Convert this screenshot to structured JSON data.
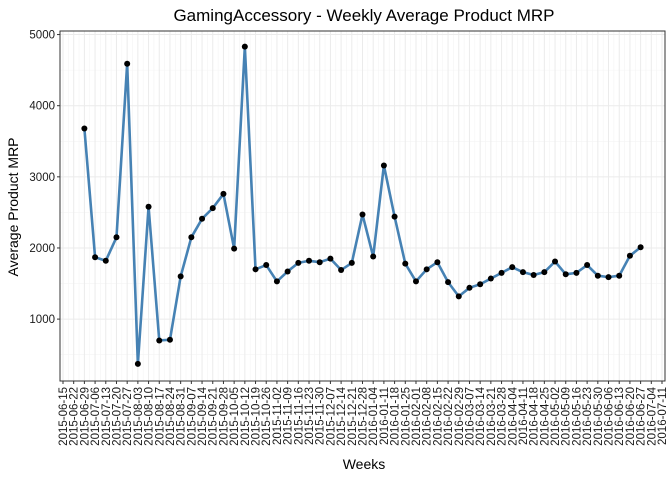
{
  "chart_data": {
    "type": "line",
    "title": "GamingAccessory - Weekly Average Product MRP",
    "xlabel": "Weeks",
    "ylabel": "Average Product MRP",
    "ylim": [
      130,
      5050
    ],
    "y_ticks": [
      1000,
      2000,
      3000,
      4000,
      5000
    ],
    "grid": true,
    "line_color": "#4682B4",
    "point_color": "#000000",
    "x_ticks": [
      "2015-06-15",
      "2015-06-22",
      "2015-06-29",
      "2015-07-06",
      "2015-07-13",
      "2015-07-20",
      "2015-07-27",
      "2015-08-03",
      "2015-08-10",
      "2015-08-17",
      "2015-08-24",
      "2015-08-31",
      "2015-09-07",
      "2015-09-14",
      "2015-09-21",
      "2015-09-28",
      "2015-10-05",
      "2015-10-12",
      "2015-10-19",
      "2015-10-26",
      "2015-11-02",
      "2015-11-09",
      "2015-11-16",
      "2015-11-23",
      "2015-11-30",
      "2015-12-07",
      "2015-12-14",
      "2015-12-21",
      "2015-12-28",
      "2016-01-04",
      "2016-01-11",
      "2016-01-18",
      "2016-01-25",
      "2016-02-01",
      "2016-02-08",
      "2016-02-15",
      "2016-02-22",
      "2016-02-29",
      "2016-03-07",
      "2016-03-14",
      "2016-03-21",
      "2016-03-28",
      "2016-04-04",
      "2016-04-11",
      "2016-04-18",
      "2016-04-25",
      "2016-05-02",
      "2016-05-09",
      "2016-05-16",
      "2016-05-23",
      "2016-05-30",
      "2016-06-06",
      "2016-06-13",
      "2016-06-20",
      "2016-06-27",
      "2016-07-04",
      "2016-07-11"
    ],
    "x_start": "2015-06-15",
    "x_end": "2016-07-11",
    "points": [
      [
        "2015-06-29",
        3680
      ],
      [
        "2015-07-06",
        1870
      ],
      [
        "2015-07-13",
        1820
      ],
      [
        "2015-07-20",
        2150
      ],
      [
        "2015-07-27",
        4590
      ],
      [
        "2015-08-03",
        370
      ],
      [
        "2015-08-10",
        2580
      ],
      [
        "2015-08-17",
        700
      ],
      [
        "2015-08-24",
        710
      ],
      [
        "2015-08-31",
        1600
      ],
      [
        "2015-09-07",
        2150
      ],
      [
        "2015-09-14",
        2410
      ],
      [
        "2015-09-21",
        2560
      ],
      [
        "2015-09-28",
        2760
      ],
      [
        "2015-10-05",
        1990
      ],
      [
        "2015-10-12",
        4830
      ],
      [
        "2015-10-19",
        1700
      ],
      [
        "2015-10-26",
        1760
      ],
      [
        "2015-11-02",
        1530
      ],
      [
        "2015-11-09",
        1670
      ],
      [
        "2015-11-16",
        1790
      ],
      [
        "2015-11-23",
        1820
      ],
      [
        "2015-11-30",
        1800
      ],
      [
        "2015-12-07",
        1850
      ],
      [
        "2015-12-14",
        1690
      ],
      [
        "2015-12-21",
        1790
      ],
      [
        "2015-12-28",
        2470
      ],
      [
        "2016-01-04",
        1880
      ],
      [
        "2016-01-11",
        3160
      ],
      [
        "2016-01-18",
        2440
      ],
      [
        "2016-01-25",
        1780
      ],
      [
        "2016-02-01",
        1530
      ],
      [
        "2016-02-08",
        1700
      ],
      [
        "2016-02-15",
        1800
      ],
      [
        "2016-02-22",
        1520
      ],
      [
        "2016-02-29",
        1320
      ],
      [
        "2016-03-07",
        1440
      ],
      [
        "2016-03-14",
        1490
      ],
      [
        "2016-03-21",
        1570
      ],
      [
        "2016-03-28",
        1650
      ],
      [
        "2016-04-04",
        1730
      ],
      [
        "2016-04-11",
        1660
      ],
      [
        "2016-04-18",
        1620
      ],
      [
        "2016-04-25",
        1660
      ],
      [
        "2016-05-02",
        1810
      ],
      [
        "2016-05-09",
        1630
      ],
      [
        "2016-05-16",
        1650
      ],
      [
        "2016-05-23",
        1760
      ],
      [
        "2016-05-30",
        1610
      ],
      [
        "2016-06-06",
        1590
      ],
      [
        "2016-06-13",
        1610
      ],
      [
        "2016-06-20",
        1890
      ],
      [
        "2016-06-27",
        2010
      ]
    ]
  }
}
